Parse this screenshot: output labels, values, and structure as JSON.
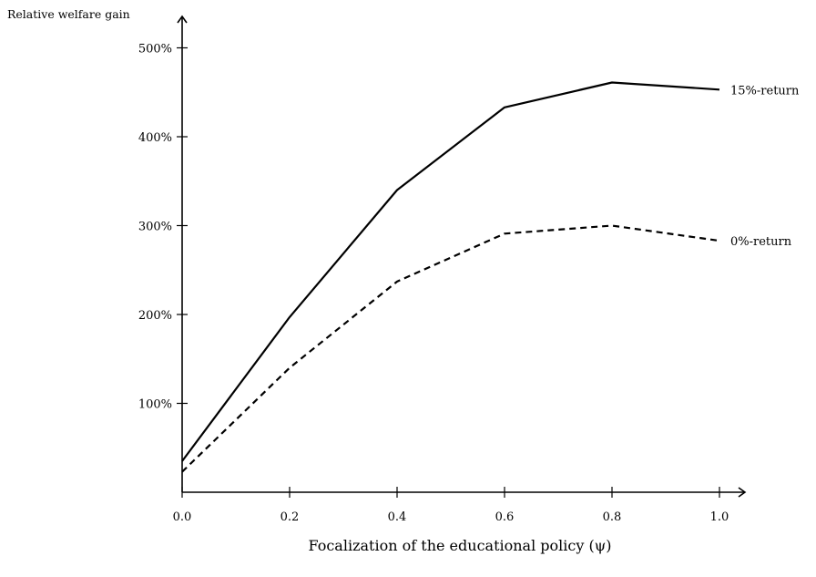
{
  "chart_data": {
    "type": "line",
    "xlabel": "Focalization of the educational policy (ψ)",
    "ylabel": "Relative welfare gain",
    "x": [
      0.0,
      0.2,
      0.4,
      0.6,
      0.8,
      1.0
    ],
    "xticks": [
      "0.0",
      "0.2",
      "0.4",
      "0.6",
      "0.8",
      "1.0"
    ],
    "yticks": [
      {
        "value": 100,
        "label": "100%"
      },
      {
        "value": 200,
        "label": "200%"
      },
      {
        "value": 300,
        "label": "300%"
      },
      {
        "value": 400,
        "label": "400%"
      },
      {
        "value": 500,
        "label": "500%"
      }
    ],
    "xlim": [
      0,
      1.05
    ],
    "ylim": [
      0,
      525
    ],
    "grid": false,
    "series": [
      {
        "name": "15%-return",
        "style": "solid",
        "values": [
          35,
          197,
          340,
          433,
          461,
          453
        ]
      },
      {
        "name": "0%-return",
        "style": "dashed",
        "values": [
          23,
          140,
          237,
          291,
          300,
          283
        ]
      }
    ]
  }
}
